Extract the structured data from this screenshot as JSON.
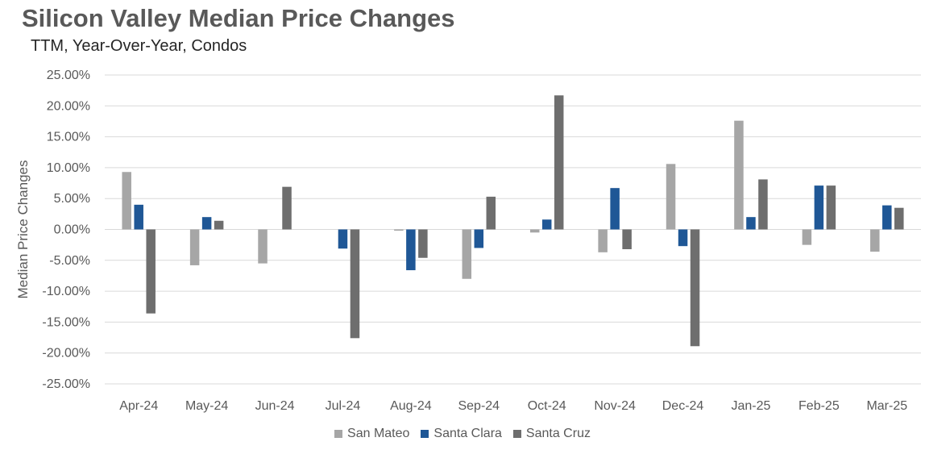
{
  "chart_data": {
    "type": "bar",
    "title": "Silicon Valley Median Price Changes",
    "subtitle": "TTM, Year-Over-Year,  Condos",
    "ylabel": "Median Price Changes",
    "xlabel": "",
    "categories": [
      "Apr-24",
      "May-24",
      "Jun-24",
      "Jul-24",
      "Aug-24",
      "Sep-24",
      "Oct-24",
      "Nov-24",
      "Dec-24",
      "Jan-25",
      "Feb-25",
      "Mar-25"
    ],
    "series": [
      {
        "name": "San Mateo",
        "color": "#a6a6a6",
        "values": [
          9.3,
          -5.8,
          -5.5,
          0.0,
          -0.2,
          -8.0,
          -0.5,
          -3.7,
          10.6,
          17.6,
          -2.5,
          -3.6
        ]
      },
      {
        "name": "Santa Clara",
        "color": "#1f5796",
        "values": [
          4.0,
          2.0,
          0.0,
          -3.1,
          -6.6,
          -3.0,
          1.6,
          6.7,
          -2.7,
          2.0,
          7.1,
          3.9
        ]
      },
      {
        "name": "Santa Cruz",
        "color": "#6e6e6e",
        "values": [
          -13.6,
          1.4,
          6.9,
          -17.6,
          -4.6,
          5.3,
          21.7,
          -3.2,
          -18.9,
          8.1,
          7.1,
          3.5
        ]
      }
    ],
    "ylim": [
      -25,
      25
    ],
    "ytick_step": 5,
    "ytick_labels": [
      "25.00%",
      "20.00%",
      "15.00%",
      "10.00%",
      "5.00%",
      "0.00%",
      "-5.00%",
      "-10.00%",
      "-15.00%",
      "-20.00%",
      "-25.00%"
    ],
    "grid": true,
    "legend_position": "bottom"
  }
}
